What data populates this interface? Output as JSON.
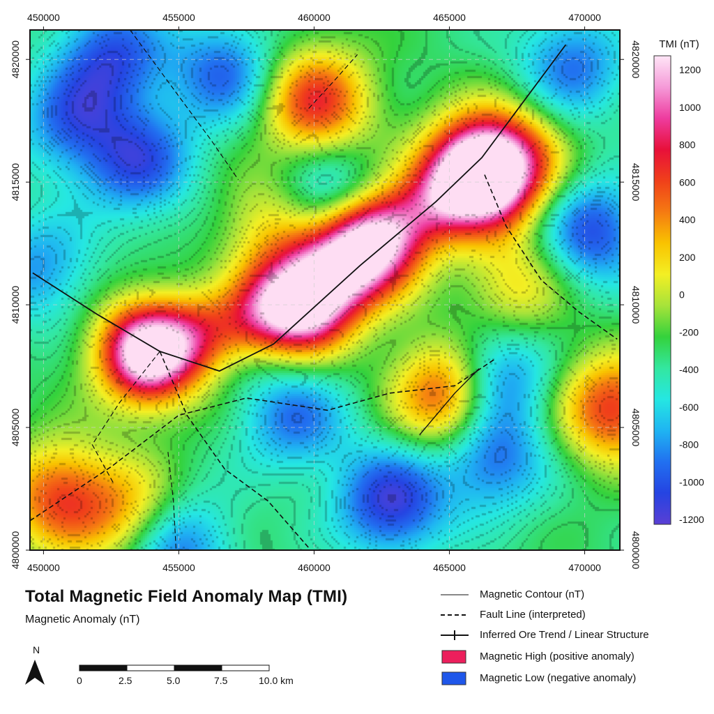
{
  "map": {
    "title": "Total Magnetic Field Anomaly Map (TMI)",
    "subtitle": "Magnetic Anomaly (nT)",
    "easting_ticks": [
      "450000",
      "455000",
      "460000",
      "465000",
      "470000"
    ],
    "northing_ticks": [
      "4820000",
      "4815000",
      "4810000",
      "4805000",
      "4800000"
    ],
    "anomalies": [
      {
        "easting": 461900,
        "northing": 4812500,
        "nT": 1200,
        "label": "high"
      },
      {
        "easting": 459500,
        "northing": 4810200,
        "nT": 1250,
        "label": "high"
      },
      {
        "easting": 453900,
        "northing": 4808100,
        "nT": 1100,
        "label": "high"
      },
      {
        "easting": 465800,
        "northing": 4815200,
        "nT": 1000,
        "label": "high"
      },
      {
        "easting": 467000,
        "northing": 4815800,
        "nT": 900,
        "label": "high"
      },
      {
        "easting": 465000,
        "northing": 4806400,
        "nT": 900,
        "label": "high"
      },
      {
        "easting": 460000,
        "northing": 4818300,
        "nT": 750,
        "label": "high"
      },
      {
        "easting": 471000,
        "northing": 4805800,
        "nT": 700,
        "label": "high"
      },
      {
        "easting": 450500,
        "northing": 4802200,
        "nT": 600,
        "label": "high"
      },
      {
        "easting": 453200,
        "northing": 4801500,
        "nT": 350,
        "label": "high"
      },
      {
        "easting": 458500,
        "northing": 4813500,
        "nT": 200,
        "label": "high"
      },
      {
        "easting": 467500,
        "northing": 4810800,
        "nT": 200,
        "label": "high"
      },
      {
        "easting": 453500,
        "northing": 4815800,
        "nT": -1000,
        "label": "low"
      },
      {
        "easting": 452500,
        "northing": 4820200,
        "nT": -1000,
        "label": "low"
      },
      {
        "easting": 456700,
        "northing": 4819500,
        "nT": -950,
        "label": "low"
      },
      {
        "easting": 460500,
        "northing": 4814200,
        "nT": -1000,
        "label": "low"
      },
      {
        "easting": 466500,
        "northing": 4807000,
        "nT": -1150,
        "label": "low"
      },
      {
        "easting": 462800,
        "northing": 4802000,
        "nT": -1150,
        "label": "low"
      },
      {
        "easting": 466500,
        "northing": 4803800,
        "nT": -950,
        "label": "low"
      },
      {
        "easting": 470200,
        "northing": 4813000,
        "nT": -1050,
        "label": "low"
      },
      {
        "easting": 469500,
        "northing": 4819800,
        "nT": -900,
        "label": "low"
      },
      {
        "easting": 459200,
        "northing": 4805500,
        "nT": -900,
        "label": "low"
      },
      {
        "easting": 454800,
        "northing": 4800200,
        "nT": -1000,
        "label": "low"
      },
      {
        "easting": 449800,
        "northing": 4811500,
        "nT": -800,
        "label": "low"
      },
      {
        "easting": 451000,
        "northing": 4817500,
        "nT": -900,
        "label": "low"
      }
    ]
  },
  "colorbar": {
    "title": "TMI (nT)",
    "ticks": [
      "1200",
      "1000",
      "800",
      "600",
      "400",
      "200",
      "0",
      "-200",
      "-400",
      "-600",
      "-800",
      "-1000",
      "-1200"
    ],
    "colors": [
      "#ffe6f7",
      "#f59ad8",
      "#ee3c9f",
      "#e8103a",
      "#f0401a",
      "#f57a12",
      "#f9c300",
      "#f3ef24",
      "#a7e33a",
      "#34d23c",
      "#33e7a0",
      "#25e7e2",
      "#1fb4f2",
      "#2170f0",
      "#2544e2",
      "#5a3fd4"
    ]
  },
  "legend": [
    {
      "symbol": "contour",
      "label": "Magnetic Contour (nT)"
    },
    {
      "symbol": "fault",
      "label": "Fault Line (interpreted)"
    },
    {
      "symbol": "trend",
      "label": "Inferred Ore Trend / Linear Structure"
    },
    {
      "symbol": "high",
      "label": "Magnetic High (positive anomaly)",
      "color": "#ec1f5c"
    },
    {
      "symbol": "low",
      "label": "Magnetic Low (negative anomaly)",
      "color": "#1f57ea"
    }
  ],
  "north_arrow": {
    "label": "N"
  },
  "scale_bar": {
    "labels": [
      "0",
      "2.5",
      "5.0",
      "7.5",
      "10.0 km"
    ]
  }
}
